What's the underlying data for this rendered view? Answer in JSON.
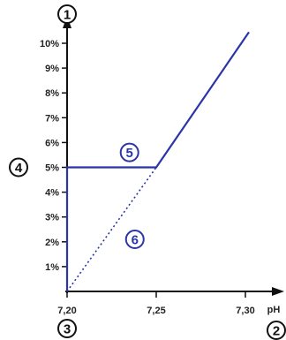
{
  "chart_data": {
    "type": "line",
    "x_axis": {
      "unit": "pH",
      "min": 7.2,
      "max": 7.32,
      "ticks": [
        {
          "value": 7.2,
          "label": "7,20"
        },
        {
          "value": 7.25,
          "label": "7,25"
        },
        {
          "value": 7.3,
          "label": "7,30"
        }
      ]
    },
    "y_axis": {
      "min": 0,
      "max": 11,
      "ticks": [
        {
          "value": 1,
          "label": "1%"
        },
        {
          "value": 2,
          "label": "2%"
        },
        {
          "value": 3,
          "label": "3%"
        },
        {
          "value": 4,
          "label": "4%"
        },
        {
          "value": 5,
          "label": "5%"
        },
        {
          "value": 6,
          "label": "6%"
        },
        {
          "value": 7,
          "label": "7%"
        },
        {
          "value": 8,
          "label": "8%"
        },
        {
          "value": 9,
          "label": "9%"
        },
        {
          "value": 10,
          "label": "10%"
        }
      ]
    },
    "series": [
      {
        "style": "solid",
        "points": [
          [
            7.2,
            0
          ],
          [
            7.2,
            5
          ],
          [
            7.25,
            5
          ],
          [
            7.302,
            10.45
          ]
        ]
      },
      {
        "style": "dotted",
        "points": [
          [
            7.2,
            0
          ],
          [
            7.25,
            5
          ]
        ]
      }
    ],
    "markers": [
      {
        "label": "1",
        "circled": true,
        "style": "black",
        "anchor": "y-axis-top"
      },
      {
        "label": "2",
        "circled": true,
        "style": "black",
        "anchor": "x-axis-end"
      },
      {
        "label": "3",
        "circled": true,
        "style": "black",
        "anchor": "origin-below"
      },
      {
        "label": "4",
        "circled": true,
        "style": "black",
        "anchor": "y-axis-left",
        "y": 5
      },
      {
        "label": "5",
        "circled": true,
        "style": "blue",
        "x": 7.235,
        "y": 5.6
      },
      {
        "label": "6",
        "circled": true,
        "style": "blue",
        "x": 7.238,
        "y": 2.1
      }
    ],
    "colors": {
      "series": "#2a35a8",
      "axis": "#111111",
      "marker_blue": "#2a35a8",
      "marker_black": "#111111"
    },
    "grid": false,
    "legend": "none"
  }
}
